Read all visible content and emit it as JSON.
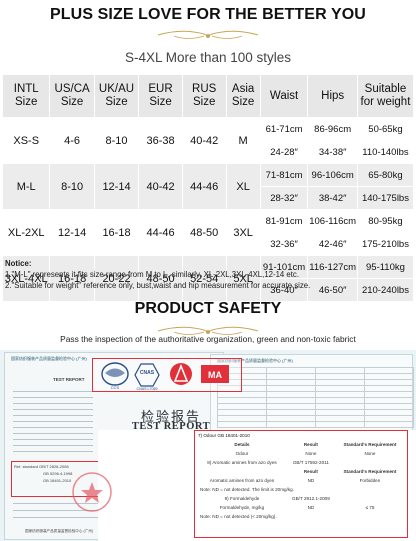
{
  "header": {
    "title": "PLUS SIZE LOVE FOR THE BETTER YOU",
    "subtitle": "S-4XL More than 100 styles"
  },
  "size_table": {
    "headers": [
      "INTL Size",
      "US/CA Size",
      "UK/AU Size",
      "EUR Size",
      "RUS Size",
      "Asia Size",
      "Waist",
      "Hips",
      "Suitable for weight"
    ],
    "rows": [
      {
        "intl": "XS-S",
        "us": "4-6",
        "uk": "8-10",
        "eur": "36-38",
        "rus": "40-42",
        "asia": "M",
        "waist_cm": "61-71cm",
        "waist_in": "24-28″",
        "hips_cm": "86-96cm",
        "hips_in": "34-38″",
        "weight_kg": "50-65kg",
        "weight_lbs": "110-140lbs"
      },
      {
        "intl": "M-L",
        "us": "8-10",
        "uk": "12-14",
        "eur": "40-42",
        "rus": "44-46",
        "asia": "XL",
        "waist_cm": "71-81cm",
        "waist_in": "28-32″",
        "hips_cm": "96-106cm",
        "hips_in": "38-42″",
        "weight_kg": "65-80kg",
        "weight_lbs": "140-175lbs"
      },
      {
        "intl": "XL-2XL",
        "us": "12-14",
        "uk": "16-18",
        "eur": "44-46",
        "rus": "48-50",
        "asia": "3XL",
        "waist_cm": "81-91cm",
        "waist_in": "32-36″",
        "hips_cm": "106-116cm",
        "hips_in": "42-46″",
        "weight_kg": "80-95kg",
        "weight_lbs": "175-210lbs"
      },
      {
        "intl": "3XL-4XL",
        "us": "16-18",
        "uk": "20-22",
        "eur": "48-50",
        "rus": "52-54",
        "asia": "5XL",
        "waist_cm": "91-101cm",
        "waist_in": "36-40″",
        "hips_cm": "116-127cm",
        "hips_in": "46-50″",
        "weight_kg": "95-110kg",
        "weight_lbs": "210-240lbs"
      }
    ]
  },
  "notice": {
    "title": "Notice:",
    "line1": "1.\"M-L\" represents it fits size range from M to L,  similarly, XL-2XL,3XL-4XL,12-14 etc.",
    "line2": "2.\"Suitable for weight\" reference only, bust,waist and hip measurement for accurate size."
  },
  "safety": {
    "title": "PRODUCT SAFETY",
    "subtitle": "Pass  the inspection of the authoritative organization, green and non-toxic fabrict"
  },
  "certificate": {
    "cn_title": "检验报告",
    "en_title": "TEST REPORT",
    "left_heading": "TEST REPORT",
    "cnas_label": "CNAS L7069",
    "ma_label": "MA",
    "standard_row": "Ref. standard    GB/T 2828-2008",
    "standard_row2": "GB 5296.4-1998",
    "standard_row3": "GB 18401-2010",
    "right_gb": "7) Odour        GB 18401-2010",
    "col_details": "Details",
    "col_result": "Result",
    "col_standard": "Standard's Requirement",
    "r1_details": "Odour",
    "r1_result": "None",
    "r1_standard": "None",
    "r2_details": "8) Aromatic amines from azo dyes",
    "r2_std": "GB/T 17592-2011",
    "r2_result": "Result",
    "r2_standard": "Standard's Requirement",
    "r3_details": "Aromatic amines from azo dyes",
    "r3_result": "ND",
    "r3_standard": "Forbidden",
    "r3_note": "Note: ND = not detected. The limit is 20mg/kg.",
    "r4_details": "9) Formaldehyde",
    "r4_std": "GB/T 2912.1-2009",
    "r5_details": "Formaldehyde, mg/kg",
    "r5_result": "ND",
    "r5_standard": "≤ 75",
    "r5_note": "Note: ND = not detected (< 20mg/kg)."
  }
}
